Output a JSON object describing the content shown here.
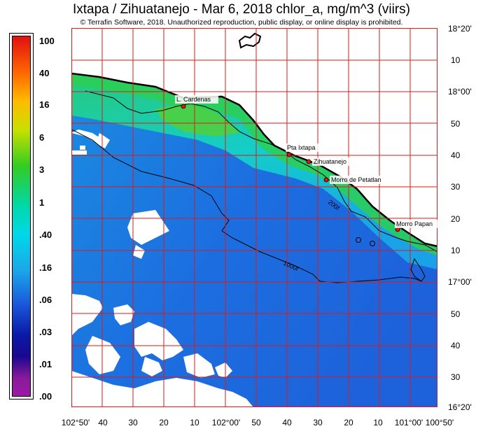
{
  "title": "Ixtapa / Zihuatanejo - Mar 6, 2018  chlor_a, mg/m^3 (viirs)",
  "copyright": "© Terrafin Software,  2018.  Unauthorized reproduction, public display, or online display is prohibited.",
  "colorbar": {
    "labels": [
      "100",
      "40",
      "16",
      "6",
      "3",
      "1",
      ".40",
      ".16",
      ".06",
      ".03",
      ".01",
      ".00"
    ]
  },
  "axes": {
    "right_labels": [
      "18°20'",
      "10",
      "18°00'",
      "50",
      "40",
      "30",
      "20",
      "10",
      "17°00'",
      "50",
      "40",
      "30",
      "16°20'"
    ],
    "bottom_labels": [
      "102°50'",
      "40",
      "30",
      "20",
      "10",
      "102°00'",
      "50",
      "40",
      "30",
      "20",
      "10",
      "101°00'",
      "100°50'"
    ]
  },
  "places": {
    "cardenas": "L. Cardenas",
    "ixtapa": "Pta Ixtapa",
    "zihuatanejo": "Zihuatanejo",
    "petatlan": "Morro de Petatlan",
    "papanoa": "Morro Papan"
  },
  "isobaths": {
    "i200": "200f",
    "i1000": "1000f"
  }
}
